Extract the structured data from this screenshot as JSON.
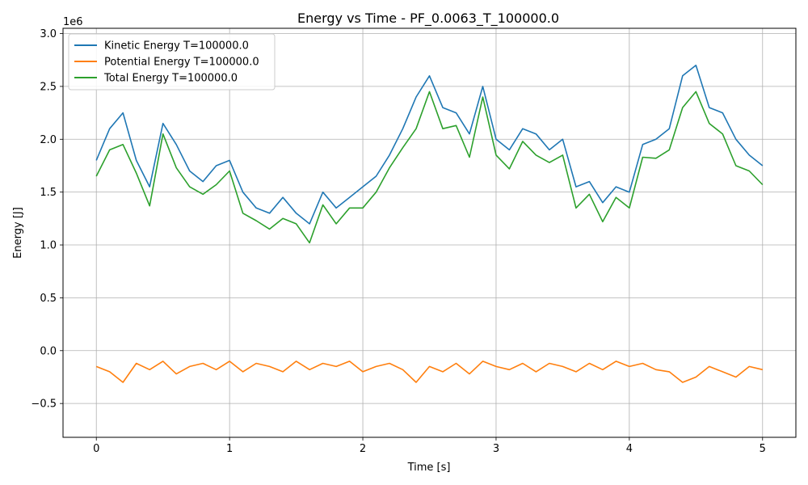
{
  "chart_data": {
    "type": "line",
    "title": "Energy vs Time - PF_0.0063_T_100000.0",
    "xlabel": "Time [s]",
    "ylabel": "Energy [J]",
    "y_offset_label": "1e6",
    "xlim": [
      -0.25,
      5.25
    ],
    "ylim": [
      -0.82,
      3.05
    ],
    "x_ticks": [
      0,
      1,
      2,
      3,
      4,
      5
    ],
    "x_tick_labels": [
      "0",
      "1",
      "2",
      "3",
      "4",
      "5"
    ],
    "y_ticks": [
      -0.5,
      0.0,
      0.5,
      1.0,
      1.5,
      2.0,
      2.5,
      3.0
    ],
    "y_tick_labels": [
      "−0.5",
      "0.0",
      "0.5",
      "1.0",
      "1.5",
      "2.0",
      "2.5",
      "3.0"
    ],
    "grid": true,
    "legend_position": "top-left",
    "x": [
      0.0,
      0.1,
      0.2,
      0.3,
      0.4,
      0.5,
      0.6,
      0.7,
      0.8,
      0.9,
      1.0,
      1.1,
      1.2,
      1.3,
      1.4,
      1.5,
      1.6,
      1.7,
      1.8,
      1.9,
      2.0,
      2.1,
      2.2,
      2.3,
      2.4,
      2.5,
      2.6,
      2.7,
      2.8,
      2.9,
      3.0,
      3.1,
      3.2,
      3.3,
      3.4,
      3.5,
      3.6,
      3.7,
      3.8,
      3.9,
      4.0,
      4.1,
      4.2,
      4.3,
      4.4,
      4.5,
      4.6,
      4.7,
      4.8,
      4.9,
      5.0
    ],
    "series": [
      {
        "name": "Kinetic Energy T=100000.0",
        "color": "#1f77b4",
        "values": [
          1.8,
          2.1,
          2.25,
          1.8,
          1.55,
          2.15,
          1.95,
          1.7,
          1.6,
          1.75,
          1.8,
          1.5,
          1.35,
          1.3,
          1.45,
          1.3,
          1.2,
          1.5,
          1.35,
          1.45,
          1.55,
          1.65,
          1.85,
          2.1,
          2.4,
          2.6,
          2.3,
          2.25,
          2.05,
          2.5,
          2.0,
          1.9,
          2.1,
          2.05,
          1.9,
          2.0,
          1.55,
          1.6,
          1.4,
          1.55,
          1.5,
          1.95,
          2.0,
          2.1,
          2.6,
          2.7,
          2.3,
          2.25,
          2.0,
          1.85,
          1.75
        ]
      },
      {
        "name": "Potential Energy T=100000.0",
        "color": "#ff7f0e",
        "values": [
          -0.15,
          -0.2,
          -0.3,
          -0.12,
          -0.18,
          -0.1,
          -0.22,
          -0.15,
          -0.12,
          -0.18,
          -0.1,
          -0.2,
          -0.12,
          -0.15,
          -0.2,
          -0.1,
          -0.18,
          -0.12,
          -0.15,
          -0.1,
          -0.2,
          -0.15,
          -0.12,
          -0.18,
          -0.3,
          -0.15,
          -0.2,
          -0.12,
          -0.22,
          -0.1,
          -0.15,
          -0.18,
          -0.12,
          -0.2,
          -0.12,
          -0.15,
          -0.2,
          -0.12,
          -0.18,
          -0.1,
          -0.15,
          -0.12,
          -0.18,
          -0.2,
          -0.3,
          -0.25,
          -0.15,
          -0.2,
          -0.25,
          -0.15,
          -0.18
        ]
      },
      {
        "name": "Total Energy T=100000.0",
        "color": "#2ca02c",
        "values": [
          1.65,
          1.9,
          1.95,
          1.68,
          1.37,
          2.05,
          1.73,
          1.55,
          1.48,
          1.57,
          1.7,
          1.3,
          1.23,
          1.15,
          1.25,
          1.2,
          1.02,
          1.38,
          1.2,
          1.35,
          1.35,
          1.5,
          1.73,
          1.92,
          2.1,
          2.45,
          2.1,
          2.13,
          1.83,
          2.4,
          1.85,
          1.72,
          1.98,
          1.85,
          1.78,
          1.85,
          1.35,
          1.48,
          1.22,
          1.45,
          1.35,
          1.83,
          1.82,
          1.9,
          2.3,
          2.45,
          2.15,
          2.05,
          1.75,
          1.7,
          1.57
        ]
      }
    ]
  }
}
